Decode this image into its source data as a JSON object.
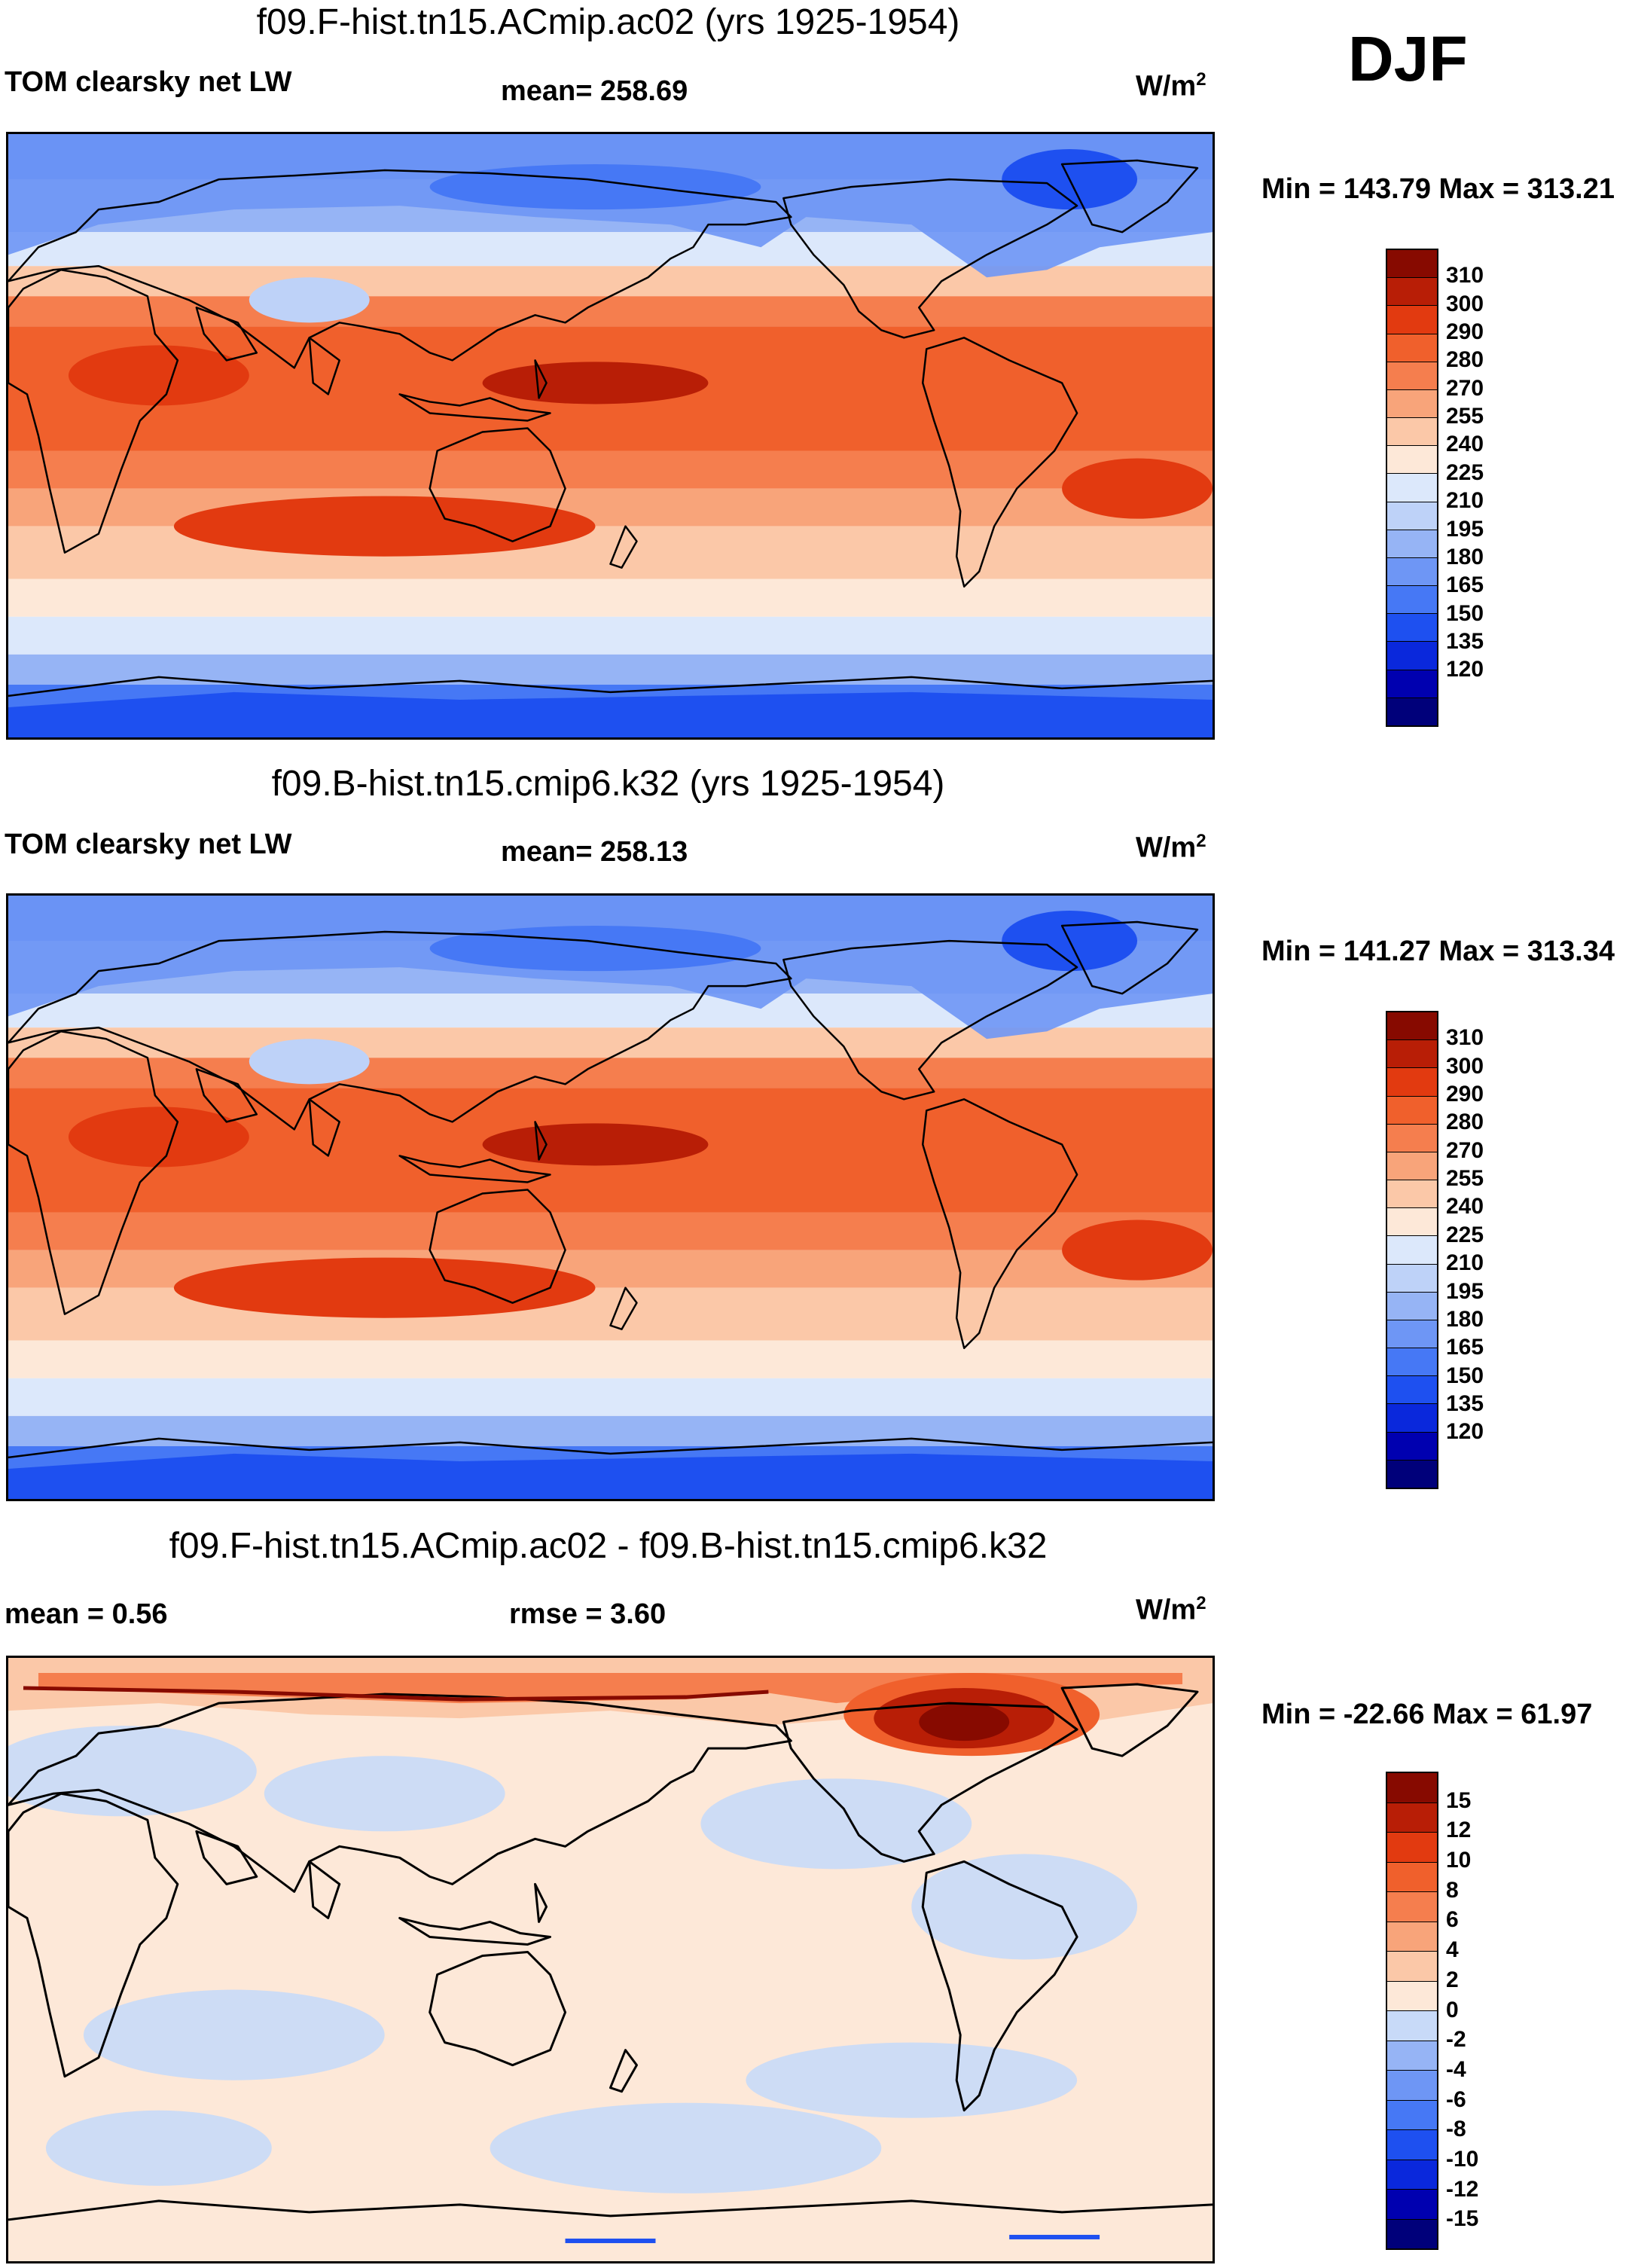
{
  "season": "DJF",
  "colors": {
    "abs_scale": [
      "#00007a",
      "#0000b0",
      "#0a28dc",
      "#1e50f0",
      "#4678f5",
      "#6e96f5",
      "#96b4f5",
      "#bed2f8",
      "#dce8fb",
      "#fde8d8",
      "#fbc8a8",
      "#f8a47a",
      "#f57e4e",
      "#f0602c",
      "#e23a10",
      "#b81e06",
      "#870a00"
    ],
    "diff_scale": [
      "#00007a",
      "#0000b0",
      "#0a28dc",
      "#1e50f0",
      "#4678f5",
      "#6e96f5",
      "#96b4f5",
      "#c8daf8",
      "#fde8d8",
      "#fbc8a8",
      "#f8a47a",
      "#f57e4e",
      "#f0602c",
      "#e23a10",
      "#b81e06",
      "#870a00"
    ],
    "land_line": "#000000"
  },
  "panels": [
    {
      "title": "f09.F-hist.tn15.ACmip.ac02 (yrs 1925-1954)",
      "variable": "TOM clearsky net LW",
      "stat": "mean= 258.69",
      "unit": "W/m",
      "unit_sup": "2",
      "minmax": "Min = 143.79 Max = 313.21",
      "levels": [
        "310",
        "300",
        "290",
        "280",
        "270",
        "255",
        "240",
        "225",
        "210",
        "195",
        "180",
        "165",
        "150",
        "135",
        "120"
      ],
      "kind": "abs"
    },
    {
      "title": "f09.B-hist.tn15.cmip6.k32 (yrs 1925-1954)",
      "variable": "TOM clearsky net LW",
      "stat": "mean= 258.13",
      "unit": "W/m",
      "unit_sup": "2",
      "minmax": "Min = 141.27 Max = 313.34",
      "levels": [
        "310",
        "300",
        "290",
        "280",
        "270",
        "255",
        "240",
        "225",
        "210",
        "195",
        "180",
        "165",
        "150",
        "135",
        "120"
      ],
      "kind": "abs"
    },
    {
      "title": "f09.F-hist.tn15.ACmip.ac02 - f09.B-hist.tn15.cmip6.k32",
      "variable": "mean =   0.56",
      "stat": "rmse =   3.60",
      "unit": "W/m",
      "unit_sup": "2",
      "minmax": "Min = -22.66 Max =  61.97",
      "levels": [
        "15",
        "12",
        "10",
        "8",
        "6",
        "4",
        "2",
        "0",
        "-2",
        "-4",
        "-6",
        "-8",
        "-10",
        "-12",
        "-15"
      ],
      "kind": "diff"
    }
  ]
}
